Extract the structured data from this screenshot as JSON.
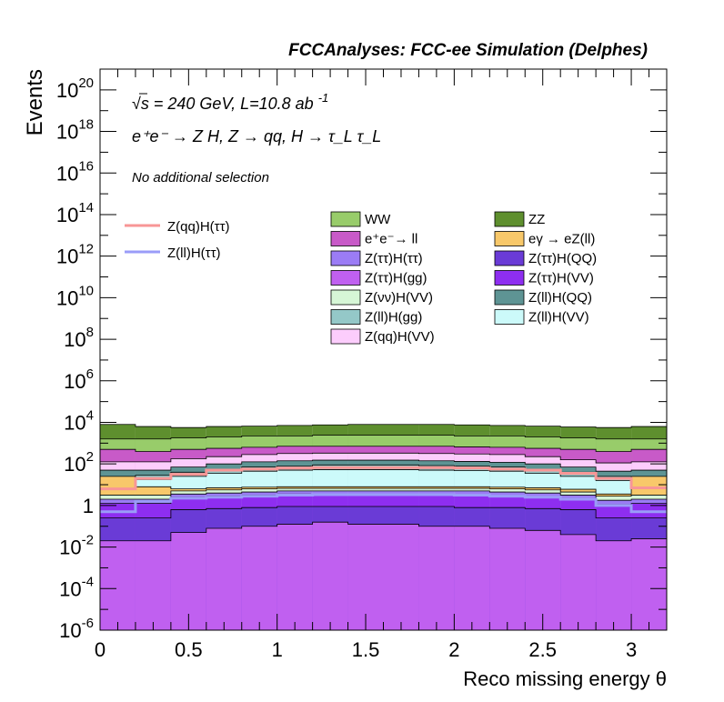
{
  "chart_data": {
    "type": "area",
    "title": "FCCAnalyses: FCC-ee Simulation (Delphes)",
    "xlabel": "Reco missing energy θ",
    "ylabel": "Events",
    "xlim": [
      0,
      3.2
    ],
    "ylim_log10": [
      -6,
      21
    ],
    "y_scale": "log",
    "x_ticks": [
      "0",
      "0.5",
      "1",
      "1.5",
      "2",
      "2.5",
      "3"
    ],
    "y_ticks": [
      {
        "base": "10",
        "exp": "20",
        "v": 20
      },
      {
        "base": "10",
        "exp": "18",
        "v": 18
      },
      {
        "base": "10",
        "exp": "16",
        "v": 16
      },
      {
        "base": "10",
        "exp": "14",
        "v": 14
      },
      {
        "base": "10",
        "exp": "12",
        "v": 12
      },
      {
        "base": "10",
        "exp": "10",
        "v": 10
      },
      {
        "base": "10",
        "exp": "8",
        "v": 8
      },
      {
        "base": "10",
        "exp": "6",
        "v": 6
      },
      {
        "base": "10",
        "exp": "4",
        "v": 4
      },
      {
        "base": "10",
        "exp": "2",
        "v": 2
      },
      {
        "base": "1",
        "exp": "",
        "v": 0
      },
      {
        "base": "10",
        "exp": "-2",
        "v": -2
      },
      {
        "base": "10",
        "exp": "-4",
        "v": -4
      },
      {
        "base": "10",
        "exp": "-6",
        "v": -6
      }
    ],
    "bin_edges": [
      0,
      0.2,
      0.4,
      0.6,
      0.8,
      1.0,
      1.2,
      1.4,
      1.6,
      1.8,
      2.0,
      2.2,
      2.4,
      2.6,
      2.8,
      3.0,
      3.2
    ],
    "annotations": {
      "energy": "√s = 240 GeV, L=10.8 ab",
      "energy_sup": "-1",
      "process": "e⁺e⁻ → Z H, Z → qq, H → τ_L τ_L",
      "selection": "No additional selection"
    },
    "stack_series": [
      {
        "name": "Z(ττ)H(gg)",
        "color": "#c060f0",
        "cum_log10": [
          -1.7,
          -1.7,
          -1.3,
          -1.1,
          -1.0,
          -0.9,
          -0.8,
          -0.9,
          -0.9,
          -1.0,
          -1.0,
          -1.1,
          -1.2,
          -1.4,
          -1.7,
          -1.6
        ]
      },
      {
        "name": "Z(ττ)H(QQ)",
        "color": "#6a3bd6",
        "cum_log10": [
          -0.6,
          -0.6,
          -0.2,
          -0.15,
          -0.1,
          -0.05,
          -0.05,
          -0.05,
          -0.05,
          -0.05,
          -0.1,
          -0.1,
          -0.15,
          -0.2,
          -0.6,
          -0.6
        ]
      },
      {
        "name": "Z(ττ)H(VV)",
        "color": "#8e2ef0",
        "cum_log10": [
          0.1,
          0.1,
          0.4,
          0.45,
          0.5,
          0.55,
          0.55,
          0.55,
          0.55,
          0.55,
          0.5,
          0.45,
          0.4,
          0.3,
          0.05,
          0.1
        ]
      },
      {
        "name": "Z(ττ)H(ττ)",
        "color": "#9b7cf5",
        "cum_log10": [
          0.3,
          0.3,
          0.55,
          0.6,
          0.65,
          0.7,
          0.7,
          0.7,
          0.7,
          0.7,
          0.7,
          0.65,
          0.6,
          0.5,
          0.25,
          0.3
        ]
      },
      {
        "name": "Z(νν)H(VV)",
        "color": "#d6f6d6",
        "cum_log10": [
          0.5,
          0.5,
          0.7,
          0.75,
          0.8,
          0.82,
          0.82,
          0.82,
          0.82,
          0.82,
          0.82,
          0.8,
          0.75,
          0.65,
          0.45,
          0.5
        ]
      },
      {
        "name": "eγ → eZ(ll)",
        "color": "#f8c86a",
        "cum_log10": [
          1.4,
          0.9,
          0.8,
          0.85,
          0.88,
          0.9,
          0.9,
          0.9,
          0.9,
          0.9,
          0.9,
          0.88,
          0.85,
          0.78,
          0.55,
          1.4
        ]
      },
      {
        "name": "Z(ll)H(VV)",
        "color": "#ccfafa",
        "cum_log10": [
          1.2,
          1.25,
          1.4,
          1.55,
          1.65,
          1.7,
          1.72,
          1.72,
          1.72,
          1.7,
          1.68,
          1.65,
          1.55,
          1.4,
          1.2,
          1.2
        ]
      },
      {
        "name": "Z(ll)H(gg)",
        "color": "#94c8c8",
        "cum_log10": [
          1.4,
          1.45,
          1.6,
          1.75,
          1.85,
          1.9,
          1.95,
          1.95,
          1.95,
          1.92,
          1.9,
          1.85,
          1.75,
          1.6,
          1.4,
          1.4
        ]
      },
      {
        "name": "Z(ll)H(QQ)",
        "color": "#5e9494",
        "cum_log10": [
          1.7,
          1.7,
          1.85,
          2.0,
          2.1,
          2.15,
          2.18,
          2.18,
          2.18,
          2.15,
          2.12,
          2.08,
          2.0,
          1.85,
          1.65,
          1.7
        ]
      },
      {
        "name": "Z(qq)H(VV)",
        "color": "#fccdfc",
        "cum_log10": [
          2.1,
          2.1,
          2.25,
          2.35,
          2.45,
          2.5,
          2.52,
          2.52,
          2.52,
          2.5,
          2.48,
          2.45,
          2.35,
          2.2,
          2.05,
          2.1
        ]
      },
      {
        "name": "e⁺e⁻→ ll",
        "color": "#c85ac8",
        "cum_log10": [
          2.7,
          2.6,
          2.7,
          2.75,
          2.8,
          2.85,
          2.85,
          2.85,
          2.85,
          2.85,
          2.82,
          2.8,
          2.75,
          2.7,
          2.6,
          2.7
        ]
      },
      {
        "name": "WW",
        "color": "#98cc6a",
        "cum_log10": [
          3.2,
          3.2,
          3.25,
          3.3,
          3.35,
          3.35,
          3.38,
          3.38,
          3.38,
          3.38,
          3.35,
          3.35,
          3.3,
          3.25,
          3.2,
          3.2
        ]
      },
      {
        "name": "ZZ",
        "color": "#5e8f2e",
        "cum_log10": [
          3.9,
          3.8,
          3.75,
          3.8,
          3.82,
          3.85,
          3.88,
          3.9,
          3.9,
          3.9,
          3.88,
          3.85,
          3.82,
          3.78,
          3.75,
          3.8
        ]
      }
    ],
    "line_series": [
      {
        "name": "Z(qq)H(ττ)",
        "color": "#f89696",
        "log10": [
          0.8,
          1.3,
          1.5,
          1.7,
          1.75,
          1.8,
          1.82,
          1.82,
          1.82,
          1.82,
          1.8,
          1.75,
          1.7,
          1.55,
          1.3,
          0.85
        ]
      },
      {
        "name": "Z(ll)H(ττ)",
        "color": "#9a9cf8",
        "log10": [
          -0.3,
          0.2,
          0.35,
          0.4,
          0.45,
          0.5,
          0.52,
          0.52,
          0.52,
          0.52,
          0.5,
          0.45,
          0.4,
          0.3,
          0.0,
          -0.3
        ]
      }
    ],
    "legend": {
      "lines": [
        "Z(qq)H(ττ)",
        "Z(ll)H(ττ)"
      ],
      "col1": [
        "WW",
        "e⁺e⁻→ ll",
        "Z(ττ)H(ττ)",
        "Z(ττ)H(gg)",
        "Z(νν)H(VV)",
        "Z(ll)H(gg)",
        "Z(qq)H(VV)"
      ],
      "col2": [
        "ZZ",
        "eγ → eZ(ll)",
        "Z(ττ)H(QQ)",
        "Z(ττ)H(VV)",
        "Z(ll)H(QQ)",
        "Z(ll)H(VV)"
      ]
    }
  }
}
